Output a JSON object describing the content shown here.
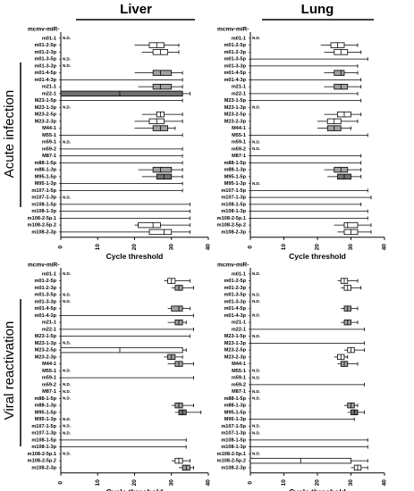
{
  "column_titles": [
    "Liver",
    "Lung"
  ],
  "row_titles": [
    "Acute infection",
    "Viral reactivation"
  ],
  "chart_data": [
    {
      "type": "box",
      "header": "mcmv-miR-",
      "xlabel": "Cycle threshold",
      "xlim": [
        0,
        40
      ],
      "xticks": [
        0,
        10,
        20,
        30,
        40
      ],
      "categories": [
        "m01-1",
        "m01-2-5p",
        "m01-2-3p",
        "m01-3-5p",
        "m01-3-3p",
        "m01-4-5p",
        "m01-4-3p",
        "m21-1",
        "m22-1",
        "M23-1-5p",
        "M23-1-3p",
        "M23-2-5p",
        "M23-2-3p",
        "M44-1",
        "M55-1",
        "m59-1",
        "m59-2",
        "M87-1",
        "m88-1-5p",
        "m88-1-3p",
        "M95-1-5p",
        "M95-1-3p",
        "m107-1-5p",
        "m107-1-3p",
        "m108-1-5p",
        "m108-1-3p",
        "m108-2-5p.1",
        "m108-2-5p.2",
        "m108-2-3p"
      ],
      "values": [
        null,
        [
          20,
          24,
          26,
          28,
          32
        ],
        [
          22,
          25,
          27,
          29,
          32
        ],
        null,
        null,
        [
          20,
          25,
          27,
          30,
          33
        ],
        [
          0,
          null,
          null,
          null,
          33
        ],
        [
          21,
          25,
          27,
          30,
          33
        ],
        [
          0,
          0,
          16,
          33,
          35
        ],
        [
          0,
          null,
          null,
          null,
          33
        ],
        null,
        [
          22,
          26,
          27,
          28,
          33
        ],
        [
          20,
          24,
          26,
          28,
          33
        ],
        [
          20,
          25,
          27,
          29,
          31
        ],
        [
          0,
          null,
          null,
          null,
          33
        ],
        null,
        [
          0,
          null,
          null,
          null,
          33
        ],
        [
          0,
          null,
          null,
          null,
          33
        ],
        [
          0,
          null,
          null,
          null,
          33
        ],
        [
          21,
          25,
          27,
          30,
          33
        ],
        [
          22,
          26,
          28,
          30,
          33
        ],
        [
          0,
          null,
          null,
          null,
          33
        ],
        [
          0,
          null,
          null,
          null,
          33
        ],
        null,
        [
          0,
          null,
          null,
          null,
          35
        ],
        [
          0,
          null,
          null,
          null,
          35
        ],
        [
          0,
          null,
          null,
          null,
          35
        ],
        [
          20,
          21,
          25,
          27,
          35
        ],
        [
          0,
          24,
          28,
          30,
          35
        ]
      ],
      "value_labels": [
        "N.D.",
        null,
        null,
        "N.D.",
        "N.D.",
        null,
        null,
        null,
        null,
        null,
        "N.D.",
        null,
        null,
        null,
        null,
        "N.D.",
        null,
        null,
        null,
        null,
        null,
        null,
        null,
        "N.D.",
        null,
        null,
        null,
        null,
        null
      ],
      "colors": [
        null,
        "#ffffff",
        "#ffffff",
        null,
        null,
        "#a0a0a0",
        null,
        "#a0a0a0",
        "#707070",
        null,
        null,
        "#ffffff",
        "#ffffff",
        "#a0a0a0",
        null,
        null,
        null,
        null,
        null,
        "#a0a0a0",
        "#707070",
        null,
        null,
        null,
        null,
        null,
        null,
        "#ffffff",
        "#ffffff"
      ]
    },
    {
      "type": "box",
      "header": "mcmv-miR-",
      "xlabel": "Cycle threshold",
      "xlim": [
        0,
        40
      ],
      "xticks": [
        0,
        10,
        20,
        30,
        40
      ],
      "categories": [
        "m01-1",
        "m01-2-5p",
        "m01-2-3p",
        "m01-3-5p",
        "m01-3-3p",
        "m01-4-5p",
        "m01-4-3p",
        "m21-1",
        "m22-1",
        "M23-1-5p",
        "M23-1-3p",
        "M23-2-5p",
        "M23-2-3p",
        "M44-1",
        "M55-1",
        "m59-1",
        "m59-2",
        "M87-1",
        "m88-1-5p",
        "m88-1-3p",
        "M95-1-5p",
        "M95-1-3p",
        "m107-1-5p",
        "m107-1-3p",
        "m108-1-5p",
        "m108-1-3p",
        "m108-2-5p.1",
        "m108-2-5p.2",
        "m108-2-3p"
      ],
      "values": [
        null,
        [
          21,
          24,
          26,
          28,
          32
        ],
        [
          22,
          25,
          27,
          29,
          33
        ],
        [
          0,
          null,
          null,
          null,
          35
        ],
        [
          0,
          null,
          null,
          null,
          32
        ],
        [
          22,
          25,
          27,
          28,
          32
        ],
        [
          0,
          null,
          null,
          null,
          33
        ],
        [
          22,
          25,
          27,
          29,
          33
        ],
        [
          0,
          null,
          null,
          null,
          32
        ],
        [
          0,
          null,
          null,
          null,
          33
        ],
        null,
        [
          22,
          26,
          28,
          30,
          33
        ],
        [
          20,
          23,
          25,
          27,
          32
        ],
        [
          20,
          23,
          25,
          27,
          30
        ],
        [
          0,
          null,
          null,
          null,
          35
        ],
        null,
        null,
        [
          0,
          null,
          null,
          null,
          33
        ],
        [
          0,
          null,
          null,
          null,
          33
        ],
        [
          22,
          25,
          27,
          29,
          33
        ],
        [
          23,
          26,
          28,
          30,
          33
        ],
        null,
        [
          0,
          null,
          null,
          null,
          35
        ],
        [
          0,
          null,
          null,
          null,
          36
        ],
        [
          0,
          null,
          null,
          null,
          33
        ],
        [
          0,
          null,
          null,
          null,
          35
        ],
        [
          0,
          null,
          null,
          null,
          35
        ],
        [
          25,
          28,
          29,
          32,
          36
        ],
        [
          26,
          28,
          30,
          32,
          36
        ]
      ],
      "value_labels": [
        "N.D.",
        null,
        null,
        null,
        null,
        null,
        null,
        null,
        null,
        null,
        "N.D.",
        null,
        null,
        null,
        null,
        "N.D.",
        "N.D.",
        null,
        null,
        null,
        null,
        "N.D.",
        null,
        null,
        null,
        null,
        null,
        null,
        null
      ],
      "colors": [
        null,
        "#ffffff",
        "#ffffff",
        null,
        null,
        "#a0a0a0",
        null,
        "#a0a0a0",
        null,
        null,
        null,
        "#ffffff",
        "#ffffff",
        "#a0a0a0",
        null,
        null,
        null,
        null,
        null,
        "#a0a0a0",
        "#707070",
        null,
        null,
        null,
        null,
        null,
        null,
        "#ffffff",
        "#ffffff"
      ]
    },
    {
      "type": "box",
      "header": "mcmv-miR-",
      "xlabel": "Cycle threshold",
      "xlim": [
        0,
        40
      ],
      "xticks": [
        0,
        10,
        20,
        30,
        40
      ],
      "categories": [
        "m01-1",
        "m01-2-5p",
        "m01-2-3p",
        "m01-3-5p",
        "m01-3-3p",
        "m01-4-5p",
        "m01-4-3p",
        "m21-1",
        "m22-1",
        "M23-1-5p",
        "M23-1-3p",
        "M23-2-5p",
        "M23-2-3p",
        "M44-1",
        "M55-1",
        "m59-1",
        "m59-2",
        "M87-1",
        "m88-1-5p",
        "m88-1-3p",
        "M95-1-5p",
        "M95-1-3p",
        "m107-1-5p",
        "m107-1-3p",
        "m108-1-5p",
        "m108-1-3p",
        "m108-2-5p.1",
        "m108-2-5p.2",
        "m108-2-3p"
      ],
      "values": [
        null,
        [
          28,
          29,
          30,
          31,
          35
        ],
        [
          30,
          31,
          32,
          33,
          36
        ],
        null,
        null,
        [
          29,
          30,
          32,
          33,
          35
        ],
        [
          0,
          null,
          null,
          null,
          36
        ],
        [
          29,
          31,
          32,
          33,
          34
        ],
        [
          0,
          null,
          null,
          null,
          36
        ],
        [
          0,
          null,
          null,
          null,
          35
        ],
        null,
        [
          0,
          0,
          16,
          33,
          34
        ],
        [
          28,
          29,
          30,
          31,
          33
        ],
        [
          29,
          31,
          32,
          33,
          36
        ],
        null,
        [
          0,
          null,
          null,
          null,
          36
        ],
        null,
        null,
        null,
        [
          30,
          31,
          32,
          33,
          36
        ],
        [
          31,
          32,
          33,
          34,
          38
        ],
        null,
        null,
        null,
        [
          0,
          null,
          null,
          null,
          34
        ],
        [
          0,
          null,
          null,
          null,
          34
        ],
        null,
        [
          30,
          31,
          32,
          33,
          35
        ],
        [
          32,
          33,
          34,
          35,
          36
        ]
      ],
      "value_labels": [
        "N.D.",
        null,
        null,
        "N.D.",
        "N.D.",
        null,
        null,
        null,
        null,
        null,
        "N.D.",
        null,
        null,
        null,
        "N.D.",
        null,
        "N.D.",
        "N.D.",
        "N.D.",
        null,
        null,
        "N.D.",
        "N.D.",
        "N.D.",
        null,
        null,
        "N.D.",
        null,
        null
      ],
      "colors": [
        null,
        "#ffffff",
        "#a0a0a0",
        null,
        null,
        "#a0a0a0",
        null,
        "#a0a0a0",
        null,
        null,
        null,
        "#ffffff",
        "#a0a0a0",
        "#a0a0a0",
        null,
        null,
        null,
        null,
        null,
        "#a0a0a0",
        "#707070",
        null,
        null,
        null,
        null,
        null,
        null,
        "#ffffff",
        "#a0a0a0"
      ]
    },
    {
      "type": "box",
      "header": "mcmv-miR-",
      "xlabel": "Cycle threshold",
      "xlim": [
        0,
        40
      ],
      "xticks": [
        0,
        10,
        20,
        30,
        40
      ],
      "categories": [
        "m01-1",
        "m01-2-5p",
        "m01-2-3p",
        "m01-3-5p",
        "m01-3-3p",
        "m01-4-5p",
        "m01-4-3p",
        "m21-1",
        "m22-1",
        "M23-1-5p",
        "M23-1-3p",
        "M23-2-5p",
        "M23-2-3p",
        "M44-1",
        "M55-1",
        "m59-1",
        "m59-2",
        "M87-1",
        "m88-1-5p",
        "m88-1-3p",
        "M95-1-5p",
        "M95-1-3p",
        "m107-1-5p",
        "m107-1-3p",
        "m108-1-5p",
        "m108-1-3p",
        "m108-2-5p.1",
        "m108-2-5p.2",
        "m108-2-3p"
      ],
      "values": [
        null,
        [
          26,
          27,
          28,
          29,
          32
        ],
        [
          27,
          28,
          29,
          30,
          33
        ],
        null,
        null,
        [
          27,
          28,
          29,
          30,
          32
        ],
        null,
        [
          27,
          28,
          29,
          30,
          32
        ],
        [
          0,
          null,
          null,
          null,
          34
        ],
        null,
        [
          0,
          null,
          null,
          null,
          34
        ],
        [
          28,
          29,
          30,
          31,
          34
        ],
        [
          25,
          26,
          27,
          28,
          29
        ],
        [
          26,
          27,
          28,
          29,
          32
        ],
        null,
        null,
        [
          0,
          null,
          null,
          null,
          34
        ],
        null,
        null,
        [
          28,
          29,
          30,
          31,
          32
        ],
        [
          29,
          30,
          31,
          32,
          34
        ],
        [
          0,
          null,
          null,
          null,
          31
        ],
        null,
        null,
        [
          0,
          null,
          null,
          null,
          35
        ],
        [
          0,
          null,
          null,
          null,
          35
        ],
        null,
        [
          0,
          0,
          15,
          30,
          35
        ],
        [
          30,
          31,
          32,
          33,
          35
        ]
      ],
      "value_labels": [
        "N.D.",
        null,
        null,
        "N.D.",
        "N.D.",
        null,
        "N.D.",
        null,
        null,
        "N.D.",
        null,
        null,
        null,
        null,
        "N.D.",
        "N.D.",
        null,
        "N.D.",
        "N.D.",
        null,
        null,
        null,
        "N.D.",
        "N.D.",
        null,
        null,
        "N.D.",
        null,
        null
      ],
      "colors": [
        null,
        "#ffffff",
        "#ffffff",
        null,
        null,
        "#a0a0a0",
        null,
        "#a0a0a0",
        null,
        null,
        null,
        "#ffffff",
        "#ffffff",
        "#a0a0a0",
        null,
        null,
        null,
        null,
        null,
        "#a0a0a0",
        "#707070",
        null,
        null,
        null,
        null,
        null,
        null,
        "#ffffff",
        "#ffffff"
      ]
    }
  ]
}
